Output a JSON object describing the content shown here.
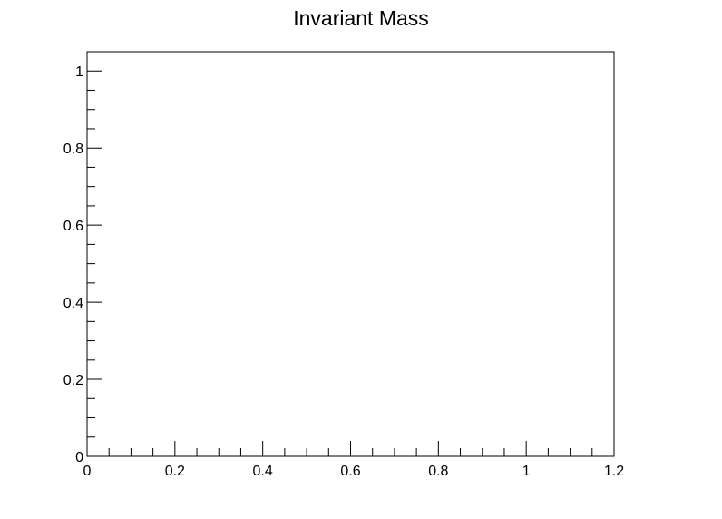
{
  "chart_data": {
    "type": "bar",
    "title": "Invariant Mass",
    "xlabel": "",
    "ylabel": "",
    "xlim": [
      0,
      1.2
    ],
    "ylim": [
      0,
      1.05
    ],
    "x_major_ticks": [
      0,
      0.2,
      0.4,
      0.6,
      0.8,
      1,
      1.2
    ],
    "x_tick_labels": [
      "0",
      "0.2",
      "0.4",
      "0.6",
      "0.8",
      "1",
      "1.2"
    ],
    "x_minor_step": 0.05,
    "y_major_ticks": [
      0,
      0.2,
      0.4,
      0.6,
      0.8,
      1
    ],
    "y_tick_labels": [
      "0",
      "0.2",
      "0.4",
      "0.6",
      "0.8",
      "1"
    ],
    "y_minor_step": 0.05,
    "series": [],
    "grid": false,
    "legend": "none"
  },
  "colors": {
    "frame": "#000000",
    "background": "#ffffff",
    "text": "#000000"
  }
}
